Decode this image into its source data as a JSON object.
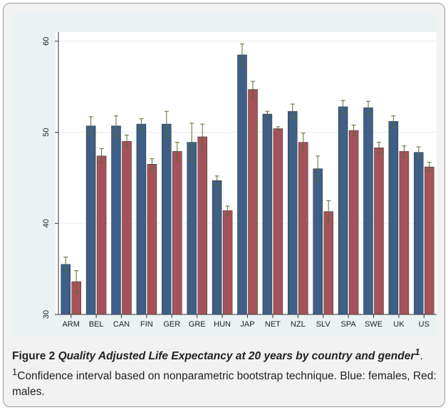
{
  "chart_data": {
    "type": "bar",
    "categories": [
      "ARM",
      "BEL",
      "CAN",
      "FIN",
      "GER",
      "GRE",
      "HUN",
      "JAP",
      "NET",
      "NZL",
      "SLV",
      "SPA",
      "SWE",
      "UK",
      "US"
    ],
    "series": [
      {
        "color": "#3e5f86",
        "values": [
          35.5,
          50.7,
          50.7,
          50.9,
          50.9,
          48.9,
          44.7,
          58.5,
          52.0,
          52.3,
          46.0,
          52.8,
          52.7,
          51.2,
          47.8
        ],
        "errors": [
          0.8,
          1.0,
          1.1,
          0.6,
          1.4,
          2.1,
          0.5,
          1.2,
          0.3,
          0.8,
          1.4,
          0.7,
          0.7,
          0.6,
          0.6
        ]
      },
      {
        "color": "#a5525b",
        "values": [
          33.6,
          47.4,
          49.0,
          46.5,
          47.9,
          49.5,
          41.4,
          54.7,
          50.4,
          48.9,
          41.3,
          50.2,
          48.3,
          47.9,
          46.2
        ],
        "errors": [
          1.2,
          0.8,
          0.7,
          0.6,
          1.0,
          1.4,
          0.5,
          0.9,
          0.2,
          1.0,
          1.2,
          0.6,
          0.6,
          0.6,
          0.5
        ]
      }
    ],
    "error_color": "#5b6b2a",
    "ylim": [
      30,
      61
    ],
    "yticks": [
      30,
      40,
      50,
      60
    ],
    "grid": true
  },
  "caption": {
    "label": "Figure 2",
    "title": "Quality Adjusted Life Expectancy at 20 years by country and gender",
    "title_note": "1",
    "separator": ".",
    "note_marker": "1",
    "note": "Confidence interval based on nonparametric bootstrap technique. Blue: females, Red: males."
  }
}
